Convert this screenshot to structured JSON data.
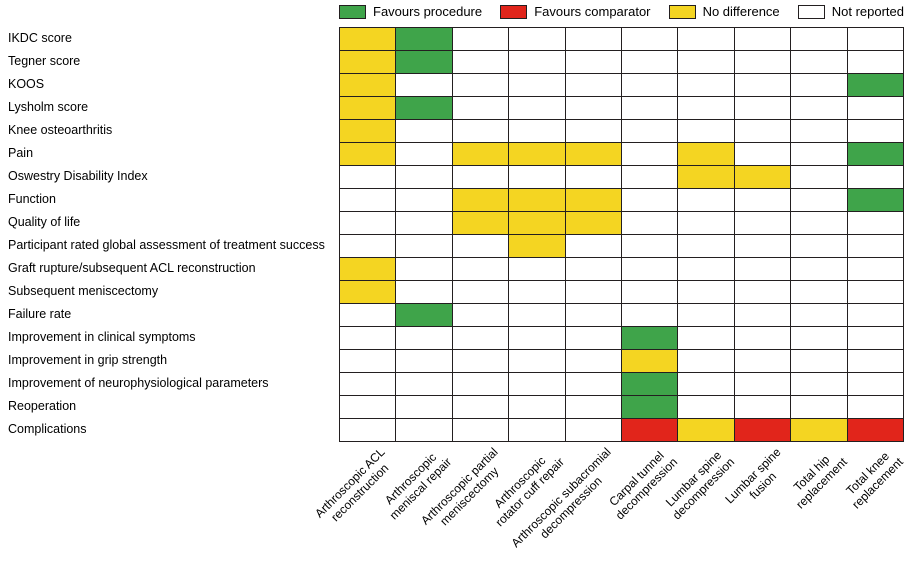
{
  "legend": {
    "items": [
      {
        "key": "G",
        "label": "Favours procedure",
        "color": "#3fa44a"
      },
      {
        "key": "R",
        "label": "Favours comparator",
        "color": "#e1251b"
      },
      {
        "key": "Y",
        "label": "No difference",
        "color": "#f4d522"
      },
      {
        "key": "W",
        "label": "Not reported",
        "color": "#ffffff"
      }
    ]
  },
  "chart_data": {
    "type": "heatmap",
    "title": "",
    "xlabel": "",
    "ylabel": "",
    "grid": true,
    "legend_position": "top",
    "rows": [
      "IKDC score",
      "Tegner score",
      "KOOS",
      "Lysholm score",
      "Knee osteoarthritis",
      "Pain",
      "Oswestry Disability Index",
      "Function",
      "Quality of life",
      "Participant rated global assessment of treatment success",
      "Graft rupture/subsequent ACL reconstruction",
      "Subsequent meniscectomy",
      "Failure rate",
      "Improvement in clinical symptoms",
      "Improvement in grip strength",
      "Improvement of neurophysiological parameters",
      "Reoperation",
      "Complications"
    ],
    "columns": [
      "Arthroscopic ACL\nreconstruction",
      "Arthroscopic\nmeniscal repair",
      "Arthroscopic partial\nmeniscectomy",
      "Arthroscopic\nrotator cuff repair",
      "Arthroscopic subacromial\ndecompression",
      "Carpal tunnel\ndecompression",
      "Lumbar spine\ndecompression",
      "Lumbar spine\nfusion",
      "Total hip\nreplacement",
      "Total knee\nreplacement"
    ],
    "value_meanings": {
      "G": "Favours procedure",
      "R": "Favours comparator",
      "Y": "No difference",
      "W": "Not reported"
    },
    "values": [
      [
        "Y",
        "G",
        "W",
        "W",
        "W",
        "W",
        "W",
        "W",
        "W",
        "W"
      ],
      [
        "Y",
        "G",
        "W",
        "W",
        "W",
        "W",
        "W",
        "W",
        "W",
        "W"
      ],
      [
        "Y",
        "W",
        "W",
        "W",
        "W",
        "W",
        "W",
        "W",
        "W",
        "G"
      ],
      [
        "Y",
        "G",
        "W",
        "W",
        "W",
        "W",
        "W",
        "W",
        "W",
        "W"
      ],
      [
        "Y",
        "W",
        "W",
        "W",
        "W",
        "W",
        "W",
        "W",
        "W",
        "W"
      ],
      [
        "Y",
        "W",
        "Y",
        "Y",
        "Y",
        "W",
        "Y",
        "W",
        "W",
        "G"
      ],
      [
        "W",
        "W",
        "W",
        "W",
        "W",
        "W",
        "Y",
        "Y",
        "W",
        "W"
      ],
      [
        "W",
        "W",
        "Y",
        "Y",
        "Y",
        "W",
        "W",
        "W",
        "W",
        "G"
      ],
      [
        "W",
        "W",
        "Y",
        "Y",
        "Y",
        "W",
        "W",
        "W",
        "W",
        "W"
      ],
      [
        "W",
        "W",
        "W",
        "Y",
        "W",
        "W",
        "W",
        "W",
        "W",
        "W"
      ],
      [
        "Y",
        "W",
        "W",
        "W",
        "W",
        "W",
        "W",
        "W",
        "W",
        "W"
      ],
      [
        "Y",
        "W",
        "W",
        "W",
        "W",
        "W",
        "W",
        "W",
        "W",
        "W"
      ],
      [
        "W",
        "G",
        "W",
        "W",
        "W",
        "W",
        "W",
        "W",
        "W",
        "W"
      ],
      [
        "W",
        "W",
        "W",
        "W",
        "W",
        "G",
        "W",
        "W",
        "W",
        "W"
      ],
      [
        "W",
        "W",
        "W",
        "W",
        "W",
        "Y",
        "W",
        "W",
        "W",
        "W"
      ],
      [
        "W",
        "W",
        "W",
        "W",
        "W",
        "G",
        "W",
        "W",
        "W",
        "W"
      ],
      [
        "W",
        "W",
        "W",
        "W",
        "W",
        "G",
        "W",
        "W",
        "W",
        "W"
      ],
      [
        "W",
        "W",
        "W",
        "W",
        "W",
        "R",
        "Y",
        "R",
        "Y",
        "R"
      ]
    ]
  }
}
